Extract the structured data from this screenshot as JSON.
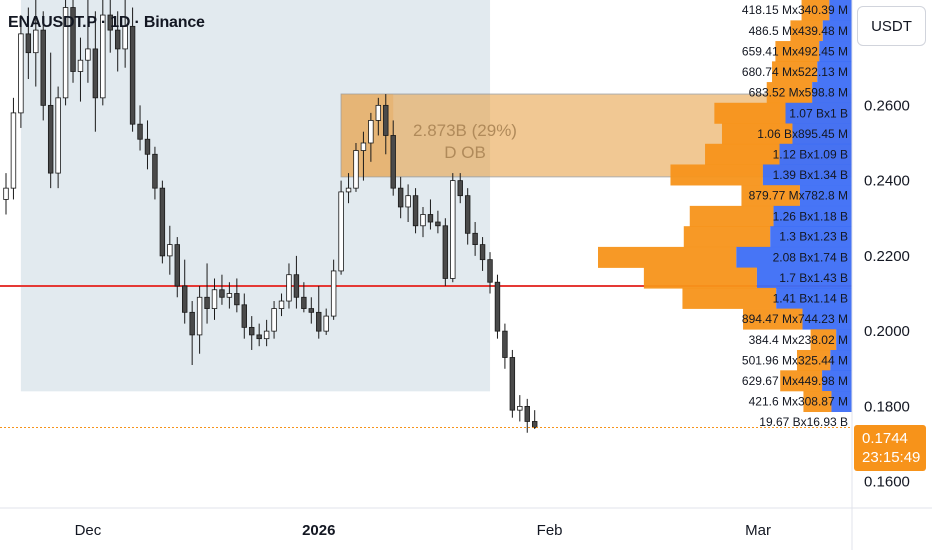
{
  "header": {
    "symbol_line": "ENAUSDT.P · 1D · Binance"
  },
  "currency_button": "USDT",
  "last_price": {
    "price": "0.1744",
    "countdown": "23:15:49",
    "value": 0.1744
  },
  "colors": {
    "up": "#ffffff",
    "down": "#4a4a4a",
    "wick": "#1a1a1a",
    "buy": "#f7931a",
    "sell": "#3d6ef5",
    "level_line": "#e53935",
    "order_block": "#e8a44c",
    "range_shade": "#dde6ec"
  },
  "level_line_price": 0.212,
  "order_block": {
    "top": 0.263,
    "bottom": 0.241,
    "from": "2026-01-04",
    "label_value": "2.873B (29%)",
    "label_name": "D OB"
  },
  "shaded_range": {
    "from": "2025-11-22",
    "to": "2026-01-24",
    "top": 0.29,
    "bottom": 0.184
  },
  "chart_data": {
    "type": "candlestick",
    "title": "ENAUSDT.P · 1D · Binance",
    "y_axis": {
      "ticks": [
        0.26,
        0.24,
        0.22,
        0.2,
        0.18,
        0.16
      ],
      "labels": [
        "0.2600",
        "0.2400",
        "0.2200",
        "0.2000",
        "0.1800",
        "0.1600"
      ],
      "ylim": [
        0.153,
        0.288
      ]
    },
    "x_axis": {
      "labels": [
        "Dec",
        "2026",
        "Feb",
        "Mar"
      ],
      "dates": [
        "2025-12-01",
        "2026-01-01",
        "2026-02-01",
        "2026-03-01"
      ],
      "xlim": [
        "2025-11-20",
        "2026-03-12"
      ]
    },
    "candles": [
      {
        "date": "2025-11-20",
        "o": 0.235,
        "h": 0.242,
        "l": 0.231,
        "c": 0.238
      },
      {
        "date": "2025-11-21",
        "o": 0.238,
        "h": 0.262,
        "l": 0.235,
        "c": 0.258
      },
      {
        "date": "2025-11-22",
        "o": 0.258,
        "h": 0.284,
        "l": 0.254,
        "c": 0.279
      },
      {
        "date": "2025-11-23",
        "o": 0.279,
        "h": 0.286,
        "l": 0.267,
        "c": 0.274
      },
      {
        "date": "2025-11-24",
        "o": 0.274,
        "h": 0.288,
        "l": 0.265,
        "c": 0.28
      },
      {
        "date": "2025-11-25",
        "o": 0.28,
        "h": 0.285,
        "l": 0.256,
        "c": 0.26
      },
      {
        "date": "2025-11-26",
        "o": 0.26,
        "h": 0.274,
        "l": 0.238,
        "c": 0.242
      },
      {
        "date": "2025-11-27",
        "o": 0.242,
        "h": 0.265,
        "l": 0.238,
        "c": 0.262
      },
      {
        "date": "2025-11-28",
        "o": 0.262,
        "h": 0.288,
        "l": 0.26,
        "c": 0.286
      },
      {
        "date": "2025-11-29",
        "o": 0.286,
        "h": 0.288,
        "l": 0.266,
        "c": 0.269
      },
      {
        "date": "2025-11-30",
        "o": 0.269,
        "h": 0.278,
        "l": 0.261,
        "c": 0.272
      },
      {
        "date": "2025-12-01",
        "o": 0.272,
        "h": 0.288,
        "l": 0.266,
        "c": 0.275
      },
      {
        "date": "2025-12-02",
        "o": 0.275,
        "h": 0.285,
        "l": 0.253,
        "c": 0.262
      },
      {
        "date": "2025-12-03",
        "o": 0.262,
        "h": 0.288,
        "l": 0.26,
        "c": 0.284
      },
      {
        "date": "2025-12-04",
        "o": 0.284,
        "h": 0.288,
        "l": 0.274,
        "c": 0.28
      },
      {
        "date": "2025-12-05",
        "o": 0.28,
        "h": 0.285,
        "l": 0.269,
        "c": 0.275
      },
      {
        "date": "2025-12-06",
        "o": 0.275,
        "h": 0.288,
        "l": 0.27,
        "c": 0.281
      },
      {
        "date": "2025-12-07",
        "o": 0.281,
        "h": 0.286,
        "l": 0.253,
        "c": 0.255
      },
      {
        "date": "2025-12-08",
        "o": 0.255,
        "h": 0.26,
        "l": 0.248,
        "c": 0.251
      },
      {
        "date": "2025-12-09",
        "o": 0.251,
        "h": 0.256,
        "l": 0.243,
        "c": 0.247
      },
      {
        "date": "2025-12-10",
        "o": 0.247,
        "h": 0.249,
        "l": 0.235,
        "c": 0.238
      },
      {
        "date": "2025-12-11",
        "o": 0.238,
        "h": 0.24,
        "l": 0.218,
        "c": 0.22
      },
      {
        "date": "2025-12-12",
        "o": 0.22,
        "h": 0.228,
        "l": 0.215,
        "c": 0.223
      },
      {
        "date": "2025-12-13",
        "o": 0.223,
        "h": 0.225,
        "l": 0.209,
        "c": 0.212
      },
      {
        "date": "2025-12-14",
        "o": 0.212,
        "h": 0.219,
        "l": 0.202,
        "c": 0.205
      },
      {
        "date": "2025-12-15",
        "o": 0.205,
        "h": 0.208,
        "l": 0.191,
        "c": 0.199
      },
      {
        "date": "2025-12-16",
        "o": 0.199,
        "h": 0.212,
        "l": 0.194,
        "c": 0.209
      },
      {
        "date": "2025-12-17",
        "o": 0.209,
        "h": 0.218,
        "l": 0.202,
        "c": 0.206
      },
      {
        "date": "2025-12-18",
        "o": 0.206,
        "h": 0.214,
        "l": 0.203,
        "c": 0.211
      },
      {
        "date": "2025-12-19",
        "o": 0.211,
        "h": 0.215,
        "l": 0.207,
        "c": 0.209
      },
      {
        "date": "2025-12-20",
        "o": 0.209,
        "h": 0.213,
        "l": 0.206,
        "c": 0.21
      },
      {
        "date": "2025-12-21",
        "o": 0.21,
        "h": 0.214,
        "l": 0.205,
        "c": 0.207
      },
      {
        "date": "2025-12-22",
        "o": 0.207,
        "h": 0.21,
        "l": 0.198,
        "c": 0.201
      },
      {
        "date": "2025-12-23",
        "o": 0.201,
        "h": 0.204,
        "l": 0.195,
        "c": 0.199
      },
      {
        "date": "2025-12-24",
        "o": 0.199,
        "h": 0.202,
        "l": 0.196,
        "c": 0.198
      },
      {
        "date": "2025-12-25",
        "o": 0.198,
        "h": 0.203,
        "l": 0.196,
        "c": 0.2
      },
      {
        "date": "2025-12-26",
        "o": 0.2,
        "h": 0.208,
        "l": 0.198,
        "c": 0.206
      },
      {
        "date": "2025-12-27",
        "o": 0.206,
        "h": 0.21,
        "l": 0.204,
        "c": 0.208
      },
      {
        "date": "2025-12-28",
        "o": 0.208,
        "h": 0.218,
        "l": 0.206,
        "c": 0.215
      },
      {
        "date": "2025-12-29",
        "o": 0.215,
        "h": 0.22,
        "l": 0.206,
        "c": 0.209
      },
      {
        "date": "2025-12-30",
        "o": 0.209,
        "h": 0.213,
        "l": 0.205,
        "c": 0.206
      },
      {
        "date": "2025-12-31",
        "o": 0.206,
        "h": 0.209,
        "l": 0.202,
        "c": 0.205
      },
      {
        "date": "2026-01-01",
        "o": 0.205,
        "h": 0.212,
        "l": 0.198,
        "c": 0.2
      },
      {
        "date": "2026-01-02",
        "o": 0.2,
        "h": 0.206,
        "l": 0.199,
        "c": 0.204
      },
      {
        "date": "2026-01-03",
        "o": 0.204,
        "h": 0.219,
        "l": 0.203,
        "c": 0.216
      },
      {
        "date": "2026-01-04",
        "o": 0.216,
        "h": 0.24,
        "l": 0.215,
        "c": 0.237
      },
      {
        "date": "2026-01-05",
        "o": 0.237,
        "h": 0.242,
        "l": 0.234,
        "c": 0.238
      },
      {
        "date": "2026-01-06",
        "o": 0.238,
        "h": 0.25,
        "l": 0.237,
        "c": 0.248
      },
      {
        "date": "2026-01-07",
        "o": 0.248,
        "h": 0.253,
        "l": 0.24,
        "c": 0.25
      },
      {
        "date": "2026-01-08",
        "o": 0.25,
        "h": 0.258,
        "l": 0.245,
        "c": 0.256
      },
      {
        "date": "2026-01-09",
        "o": 0.256,
        "h": 0.262,
        "l": 0.252,
        "c": 0.26
      },
      {
        "date": "2026-01-10",
        "o": 0.26,
        "h": 0.263,
        "l": 0.247,
        "c": 0.252
      },
      {
        "date": "2026-01-11",
        "o": 0.252,
        "h": 0.256,
        "l": 0.236,
        "c": 0.238
      },
      {
        "date": "2026-01-12",
        "o": 0.238,
        "h": 0.241,
        "l": 0.23,
        "c": 0.233
      },
      {
        "date": "2026-01-13",
        "o": 0.233,
        "h": 0.239,
        "l": 0.229,
        "c": 0.236
      },
      {
        "date": "2026-01-14",
        "o": 0.236,
        "h": 0.238,
        "l": 0.226,
        "c": 0.228
      },
      {
        "date": "2026-01-15",
        "o": 0.228,
        "h": 0.233,
        "l": 0.225,
        "c": 0.231
      },
      {
        "date": "2026-01-16",
        "o": 0.231,
        "h": 0.235,
        "l": 0.227,
        "c": 0.229
      },
      {
        "date": "2026-01-17",
        "o": 0.229,
        "h": 0.232,
        "l": 0.226,
        "c": 0.228
      },
      {
        "date": "2026-01-18",
        "o": 0.228,
        "h": 0.23,
        "l": 0.212,
        "c": 0.214
      },
      {
        "date": "2026-01-19",
        "o": 0.214,
        "h": 0.242,
        "l": 0.213,
        "c": 0.24
      },
      {
        "date": "2026-01-20",
        "o": 0.24,
        "h": 0.242,
        "l": 0.234,
        "c": 0.236
      },
      {
        "date": "2026-01-21",
        "o": 0.236,
        "h": 0.238,
        "l": 0.223,
        "c": 0.226
      },
      {
        "date": "2026-01-22",
        "o": 0.226,
        "h": 0.229,
        "l": 0.22,
        "c": 0.223
      },
      {
        "date": "2026-01-23",
        "o": 0.223,
        "h": 0.225,
        "l": 0.216,
        "c": 0.219
      },
      {
        "date": "2026-01-24",
        "o": 0.219,
        "h": 0.221,
        "l": 0.21,
        "c": 0.213
      },
      {
        "date": "2026-01-25",
        "o": 0.213,
        "h": 0.215,
        "l": 0.198,
        "c": 0.2
      },
      {
        "date": "2026-01-26",
        "o": 0.2,
        "h": 0.202,
        "l": 0.19,
        "c": 0.193
      },
      {
        "date": "2026-01-27",
        "o": 0.193,
        "h": 0.195,
        "l": 0.177,
        "c": 0.179
      },
      {
        "date": "2026-01-28",
        "o": 0.179,
        "h": 0.183,
        "l": 0.176,
        "c": 0.18
      },
      {
        "date": "2026-01-29",
        "o": 0.18,
        "h": 0.182,
        "l": 0.173,
        "c": 0.176
      },
      {
        "date": "2026-01-30",
        "o": 0.176,
        "h": 0.179,
        "l": 0.174,
        "c": 0.1744
      }
    ],
    "volume_profile": [
      {
        "label": "418.15 Mx340.39 M",
        "buy": 418.15,
        "sell": 340.39,
        "price": 0.2853
      },
      {
        "label": "486.5 Mx439.48 M",
        "buy": 486.5,
        "sell": 439.48,
        "price": 0.2798
      },
      {
        "label": "659.41 Mx492.45 M",
        "buy": 659.41,
        "sell": 492.45,
        "price": 0.2743
      },
      {
        "label": "680.74 Mx522.13 M",
        "buy": 680.74,
        "sell": 522.13,
        "price": 0.2689
      },
      {
        "label": "683.52 Mx598.8 M",
        "buy": 683.52,
        "sell": 598.8,
        "price": 0.2634
      },
      {
        "label": "1.07 Bx1 B",
        "buy": 1070,
        "sell": 1000,
        "price": 0.2579
      },
      {
        "label": "1.06 Bx895.45 M",
        "buy": 1060,
        "sell": 895.45,
        "price": 0.2524
      },
      {
        "label": "1.12 Bx1.09 B",
        "buy": 1120,
        "sell": 1090,
        "price": 0.247
      },
      {
        "label": "1.39 Bx1.34 B",
        "buy": 1390,
        "sell": 1340,
        "price": 0.2415
      },
      {
        "label": "879.77 Mx782.8 M",
        "buy": 879.77,
        "sell": 782.8,
        "price": 0.236
      },
      {
        "label": "1.26 Bx1.18 B",
        "buy": 1260,
        "sell": 1180,
        "price": 0.2305
      },
      {
        "label": "1.3 Bx1.23 B",
        "buy": 1300,
        "sell": 1230,
        "price": 0.2251
      },
      {
        "label": "2.08 Bx1.74 B",
        "buy": 2080,
        "sell": 1740,
        "price": 0.2196
      },
      {
        "label": "1.7 Bx1.43 B",
        "buy": 1700,
        "sell": 1430,
        "price": 0.2141
      },
      {
        "label": "1.41 Bx1.14 B",
        "buy": 1410,
        "sell": 1140,
        "price": 0.2087
      },
      {
        "label": "894.47 Mx744.23 M",
        "buy": 894.47,
        "sell": 744.23,
        "price": 0.2032
      },
      {
        "label": "384.4 Mx238.02 M",
        "buy": 384.4,
        "sell": 238.02,
        "price": 0.1977
      },
      {
        "label": "501.96 Mx325.44 M",
        "buy": 501.96,
        "sell": 325.44,
        "price": 0.1922
      },
      {
        "label": "629.67 Mx449.98 M",
        "buy": 629.67,
        "sell": 449.98,
        "price": 0.1868
      },
      {
        "label": "421.6 Mx308.87 M",
        "buy": 421.6,
        "sell": 308.87,
        "price": 0.1813
      },
      {
        "label": "19.67 Bx16.93 B",
        "buy": 19670,
        "sell": 16930,
        "price": 0.1758
      }
    ]
  }
}
